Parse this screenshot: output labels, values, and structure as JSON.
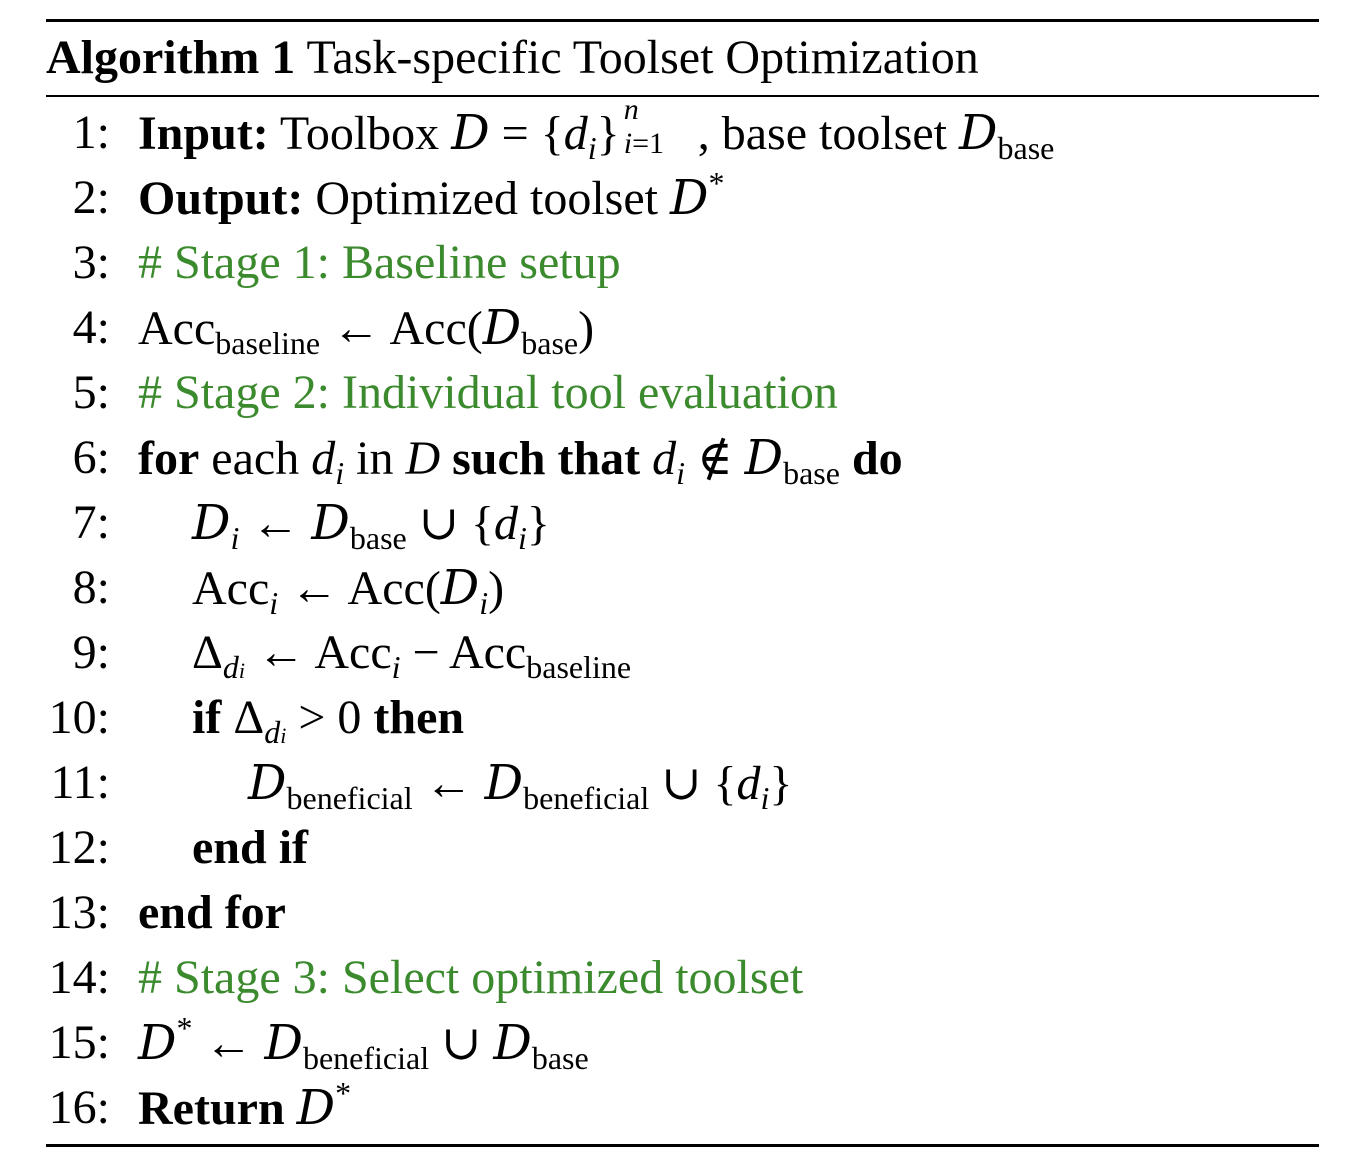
{
  "algorithm": {
    "label": "Algorithm 1",
    "title": "Task-specific Toolset Optimization"
  },
  "lines": [
    {
      "num": "1:",
      "input_kw": "Input:",
      "text_a": "Toolbox",
      "text_b": ", base toolset"
    },
    {
      "num": "2:",
      "output_kw": "Output:",
      "text": "Optimized toolset"
    },
    {
      "num": "3:",
      "comment": "# Stage 1: Baseline setup"
    },
    {
      "num": "4:"
    },
    {
      "num": "5:",
      "comment": "# Stage 2: Individual tool evaluation"
    },
    {
      "num": "6:",
      "kw_for": "for",
      "text_each": "each",
      "text_in": "in",
      "kw_such": "such that",
      "kw_do": "do"
    },
    {
      "num": "7:"
    },
    {
      "num": "8:"
    },
    {
      "num": "9:"
    },
    {
      "num": "10:",
      "kw_if": "if",
      "kw_then": "then"
    },
    {
      "num": "11:"
    },
    {
      "num": "12:",
      "kw": "end if"
    },
    {
      "num": "13:",
      "kw": "end for"
    },
    {
      "num": "14:",
      "comment": "# Stage 3: Select optimized toolset"
    },
    {
      "num": "15:"
    },
    {
      "num": "16:",
      "kw": "Return"
    }
  ],
  "math": {
    "acc": "Acc",
    "baseline": "baseline",
    "base": "base",
    "beneficial": "beneficial"
  },
  "colors": {
    "comment": "#3c8a2e",
    "text": "#000000"
  }
}
